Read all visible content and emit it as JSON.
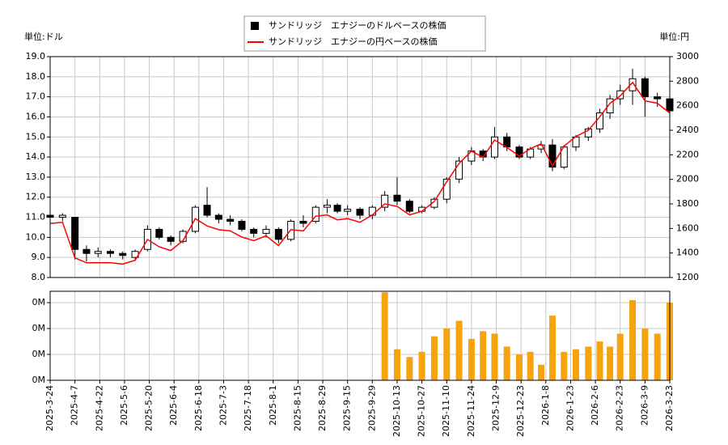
{
  "chart_data": {
    "type": "candlestick",
    "y_label": "単位:ドル",
    "y2_label": "単位:円",
    "grid": true,
    "x": [
      "2025-3-24",
      "2025-3-31",
      "2025-4-7",
      "2025-4-14",
      "2025-4-21",
      "2025-4-28",
      "2025-5-5",
      "2025-5-12",
      "2025-5-19",
      "2025-5-26",
      "2025-6-2",
      "2025-6-9",
      "2025-6-16",
      "2025-6-23",
      "2025-6-30",
      "2025-7-7",
      "2025-7-14",
      "2025-7-21",
      "2025-7-28",
      "2025-8-4",
      "2025-8-11",
      "2025-8-18",
      "2025-8-25",
      "2025-9-1",
      "2025-9-8",
      "2025-9-15",
      "2025-9-22",
      "2025-9-29",
      "2025-10-6",
      "2025-10-13",
      "2025-10-20",
      "2025-10-27",
      "2025-11-3",
      "2025-11-10",
      "2025-11-17",
      "2025-11-24",
      "2025-12-1",
      "2025-12-8",
      "2025-12-15",
      "2025-12-22",
      "2025-12-29",
      "2026-1-5",
      "2026-1-12",
      "2026-1-19",
      "2026-1-26",
      "2026-2-2",
      "2026-2-9",
      "2026-2-16",
      "2026-2-23",
      "2026-3-2",
      "2026-3-9",
      "2026-3-16",
      "2026-3-23"
    ],
    "xticks": [
      "2025-3-24",
      "2025-4-7",
      "2025-4-22",
      "2025-5-6",
      "2025-5-20",
      "2025-6-4",
      "2025-6-18",
      "2025-7-3",
      "2025-7-18",
      "2025-8-1",
      "2025-8-15",
      "2025-8-29",
      "2025-9-15",
      "2025-9-29",
      "2025-10-13",
      "2025-10-27",
      "2025-11-10",
      "2025-11-24",
      "2025-12-9",
      "2025-12-23",
      "2026-1-8",
      "2026-1-23",
      "2026-2-6",
      "2026-2-23",
      "2026-3-9",
      "2026-3-23"
    ],
    "series": [
      {
        "name": "サンドリッジ　エナジーのドルベースの株価",
        "color": "#000000",
        "open": [
          11.1,
          11.0,
          11.0,
          9.4,
          9.2,
          9.3,
          9.2,
          9.0,
          9.4,
          10.4,
          10.0,
          9.8,
          10.3,
          11.6,
          11.1,
          10.9,
          10.8,
          10.4,
          10.2,
          10.4,
          9.9,
          10.8,
          10.8,
          11.5,
          11.6,
          11.3,
          11.4,
          11.1,
          11.5,
          12.1,
          11.8,
          11.3,
          11.5,
          11.9,
          12.9,
          13.8,
          14.3,
          14.0,
          15.0,
          14.5,
          14.0,
          14.4,
          14.6,
          13.5,
          14.5,
          15.0,
          15.4,
          16.2,
          16.9,
          17.3,
          17.9,
          17.0,
          16.9
        ],
        "high": [
          11.3,
          11.2,
          11.0,
          9.6,
          9.5,
          9.4,
          9.3,
          9.4,
          10.6,
          10.5,
          10.1,
          10.4,
          11.6,
          12.5,
          11.2,
          11.1,
          10.9,
          10.5,
          10.6,
          10.5,
          10.9,
          11.1,
          11.6,
          11.9,
          11.7,
          11.6,
          11.5,
          11.6,
          12.3,
          13.0,
          11.9,
          11.6,
          12.0,
          13.0,
          14.0,
          14.5,
          14.4,
          15.5,
          15.2,
          14.6,
          14.5,
          14.8,
          14.9,
          14.6,
          15.1,
          15.5,
          16.4,
          17.1,
          17.6,
          18.4,
          18.0,
          17.2,
          17.0
        ],
        "low": [
          10.9,
          10.8,
          8.9,
          8.8,
          9.0,
          9.0,
          8.9,
          8.9,
          9.3,
          9.9,
          9.6,
          9.7,
          10.2,
          11.0,
          10.7,
          10.6,
          10.3,
          10.0,
          10.0,
          9.7,
          9.8,
          10.5,
          10.7,
          11.2,
          11.2,
          11.1,
          10.9,
          10.9,
          11.3,
          11.6,
          11.2,
          11.2,
          11.4,
          11.7,
          12.7,
          13.6,
          13.8,
          13.9,
          14.3,
          13.9,
          13.9,
          14.2,
          13.3,
          13.4,
          14.3,
          14.8,
          15.2,
          15.9,
          16.6,
          16.6,
          16.0,
          16.5,
          16.0
        ],
        "close": [
          11.0,
          11.1,
          9.4,
          9.2,
          9.3,
          9.2,
          9.1,
          9.3,
          10.4,
          10.0,
          9.8,
          10.3,
          11.5,
          11.1,
          10.9,
          10.8,
          10.4,
          10.2,
          10.4,
          9.9,
          10.8,
          10.7,
          11.5,
          11.6,
          11.3,
          11.4,
          11.1,
          11.5,
          12.1,
          11.8,
          11.3,
          11.5,
          11.9,
          12.9,
          13.8,
          14.3,
          14.0,
          15.0,
          14.5,
          14.0,
          14.4,
          14.6,
          13.5,
          14.5,
          15.0,
          15.4,
          16.2,
          16.9,
          17.3,
          17.9,
          17.0,
          16.9,
          16.3
        ]
      },
      {
        "name": "サンドリッジ　エナジーの円ベースの株価",
        "color": "#ff0000",
        "axis": "y2",
        "values": [
          1640,
          1650,
          1360,
          1320,
          1320,
          1320,
          1310,
          1340,
          1510,
          1450,
          1420,
          1500,
          1680,
          1620,
          1590,
          1580,
          1530,
          1500,
          1540,
          1460,
          1590,
          1580,
          1700,
          1710,
          1670,
          1680,
          1650,
          1710,
          1800,
          1780,
          1710,
          1740,
          1820,
          1980,
          2130,
          2230,
          2180,
          2320,
          2260,
          2190,
          2250,
          2290,
          2110,
          2270,
          2350,
          2400,
          2510,
          2620,
          2680,
          2790,
          2640,
          2620,
          2540
        ]
      }
    ],
    "ylim": [
      8,
      19
    ],
    "yticks": [
      {
        "value": 8,
        "label": "8.0"
      },
      {
        "value": 9,
        "label": "9.0"
      },
      {
        "value": 10,
        "label": "10.0"
      },
      {
        "value": 11,
        "label": "11.0"
      },
      {
        "value": 12,
        "label": "12.0"
      },
      {
        "value": 13,
        "label": "13.0"
      },
      {
        "value": 14,
        "label": "14.0"
      },
      {
        "value": 15,
        "label": "15.0"
      },
      {
        "value": 16,
        "label": "16.0"
      },
      {
        "value": 17,
        "label": "17.0"
      },
      {
        "value": 18,
        "label": "18.0"
      },
      {
        "value": 19,
        "label": "19.0"
      }
    ],
    "y2lim": [
      1200,
      3000
    ],
    "y2ticks": [
      1200,
      1400,
      1600,
      1800,
      2000,
      2200,
      2400,
      2600,
      2800,
      3000
    ],
    "volume": {
      "type": "bar",
      "color": "#f5a30f",
      "values": [
        null,
        null,
        null,
        null,
        null,
        null,
        null,
        null,
        null,
        null,
        null,
        null,
        null,
        null,
        null,
        null,
        null,
        null,
        null,
        null,
        null,
        null,
        null,
        null,
        null,
        null,
        null,
        null,
        340000,
        120000,
        90000,
        110000,
        170000,
        200000,
        230000,
        160000,
        190000,
        180000,
        130000,
        100000,
        110000,
        60000,
        250000,
        110000,
        120000,
        130000,
        150000,
        130000,
        180000,
        310000,
        200000,
        180000,
        300000
      ],
      "ylim": [
        0,
        344000
      ],
      "yticks": [
        {
          "value": 0,
          "label": "0M"
        },
        {
          "value": 100000,
          "label": "0M"
        },
        {
          "value": 200000,
          "label": "0M"
        },
        {
          "value": 300000,
          "label": "0M"
        }
      ]
    }
  }
}
